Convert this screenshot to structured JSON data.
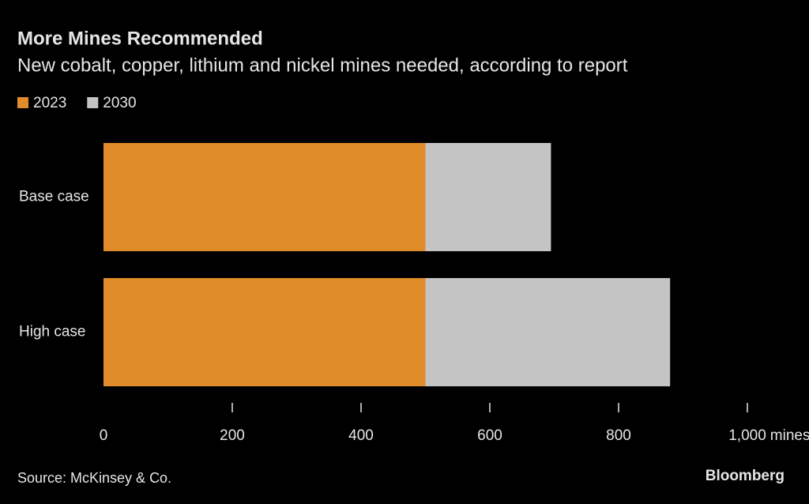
{
  "chart_data": {
    "type": "stacked-bar-horizontal",
    "title": "More Mines Recommended",
    "subtitle": "New cobalt, copper, lithium and nickel mines needed, according to report",
    "categories": [
      "Base case",
      "High case"
    ],
    "series": [
      {
        "name": "2023",
        "color": "#e08c2a",
        "values": [
          500,
          500
        ]
      },
      {
        "name": "2030",
        "color": "#c4c4c4",
        "values": [
          195,
          380
        ]
      }
    ],
    "xlim": [
      0,
      1000
    ],
    "xticks": [
      0,
      200,
      400,
      600,
      800,
      {
        "value": 1000,
        "label": "1,000"
      }
    ],
    "x_unit": "mines",
    "source": "Source: McKinsey & Co.",
    "brand": "Bloomberg"
  }
}
